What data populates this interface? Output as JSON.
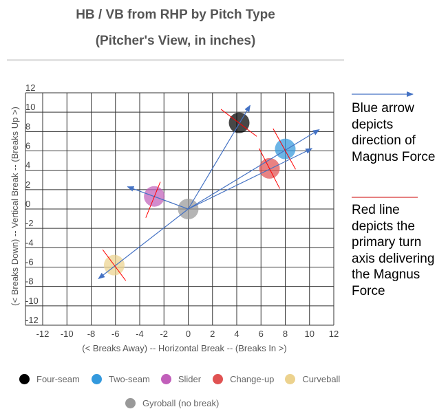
{
  "chart_data": {
    "type": "scatter",
    "title": "HB / VB from RHP by Pitch Type",
    "subtitle": "(Pitcher's View, in inches)",
    "xlabel": "(< Breaks Away) -- Horizontal Break -- (Breaks In >)",
    "ylabel": "(< Breaks Down) -- Vertical Break -- (Breaks Up >)",
    "xlim": [
      -12,
      12
    ],
    "ylim": [
      -12,
      12
    ],
    "xticks": [
      -12,
      -10,
      -8,
      -6,
      -4,
      -2,
      0,
      2,
      4,
      6,
      8,
      10,
      12
    ],
    "yticks": [
      12,
      10,
      8,
      6,
      4,
      2,
      0,
      -2,
      -4,
      -6,
      -8,
      -10,
      -12
    ],
    "grid": true,
    "legend_position": "bottom",
    "series": [
      {
        "name": "Four-seam",
        "color": "#000000",
        "x": 4.2,
        "y": 8.9
      },
      {
        "name": "Two-seam",
        "color": "#3399dd",
        "x": 8.0,
        "y": 6.2
      },
      {
        "name": "Slider",
        "color": "#c15fba",
        "x": -2.8,
        "y": 1.3
      },
      {
        "name": "Change-up",
        "color": "#e05252",
        "x": 6.7,
        "y": 4.2
      },
      {
        "name": "Curveball",
        "color": "#ecd28e",
        "x": -6.1,
        "y": -5.8
      },
      {
        "name": "Gyroball (no break)",
        "color": "#999999",
        "x": 0,
        "y": 0
      }
    ],
    "magnus_arrows": [
      {
        "from": [
          0,
          0
        ],
        "to": [
          5.1,
          10.7
        ]
      },
      {
        "from": [
          0,
          0
        ],
        "to": [
          10.8,
          8.2
        ]
      },
      {
        "from": [
          0,
          0
        ],
        "to": [
          10.2,
          6.25
        ]
      },
      {
        "from": [
          0,
          0
        ],
        "to": [
          -5.0,
          2.3
        ]
      },
      {
        "from": [
          0,
          0
        ],
        "to": [
          -7.4,
          -7.2
        ]
      }
    ],
    "spin_axis_lines": [
      {
        "from": [
          2.7,
          10.3
        ],
        "to": [
          5.65,
          7.5
        ]
      },
      {
        "from": [
          7.0,
          8.3
        ],
        "to": [
          8.85,
          4.1
        ]
      },
      {
        "from": [
          5.85,
          6.25
        ],
        "to": [
          7.55,
          2.1
        ]
      },
      {
        "from": [
          -2.3,
          2.8
        ],
        "to": [
          -3.5,
          -0.9
        ]
      },
      {
        "from": [
          -7.05,
          -4.2
        ],
        "to": [
          -5.15,
          -7.4
        ]
      }
    ],
    "arrow_color": "#4472c4",
    "axis_line_color": "#ff0000"
  },
  "notes": {
    "arrow_text": "Blue arrow depicts direction of Magnus Force",
    "line_text": "Red line depicts the primary turn axis delivering the Magnus Force"
  }
}
